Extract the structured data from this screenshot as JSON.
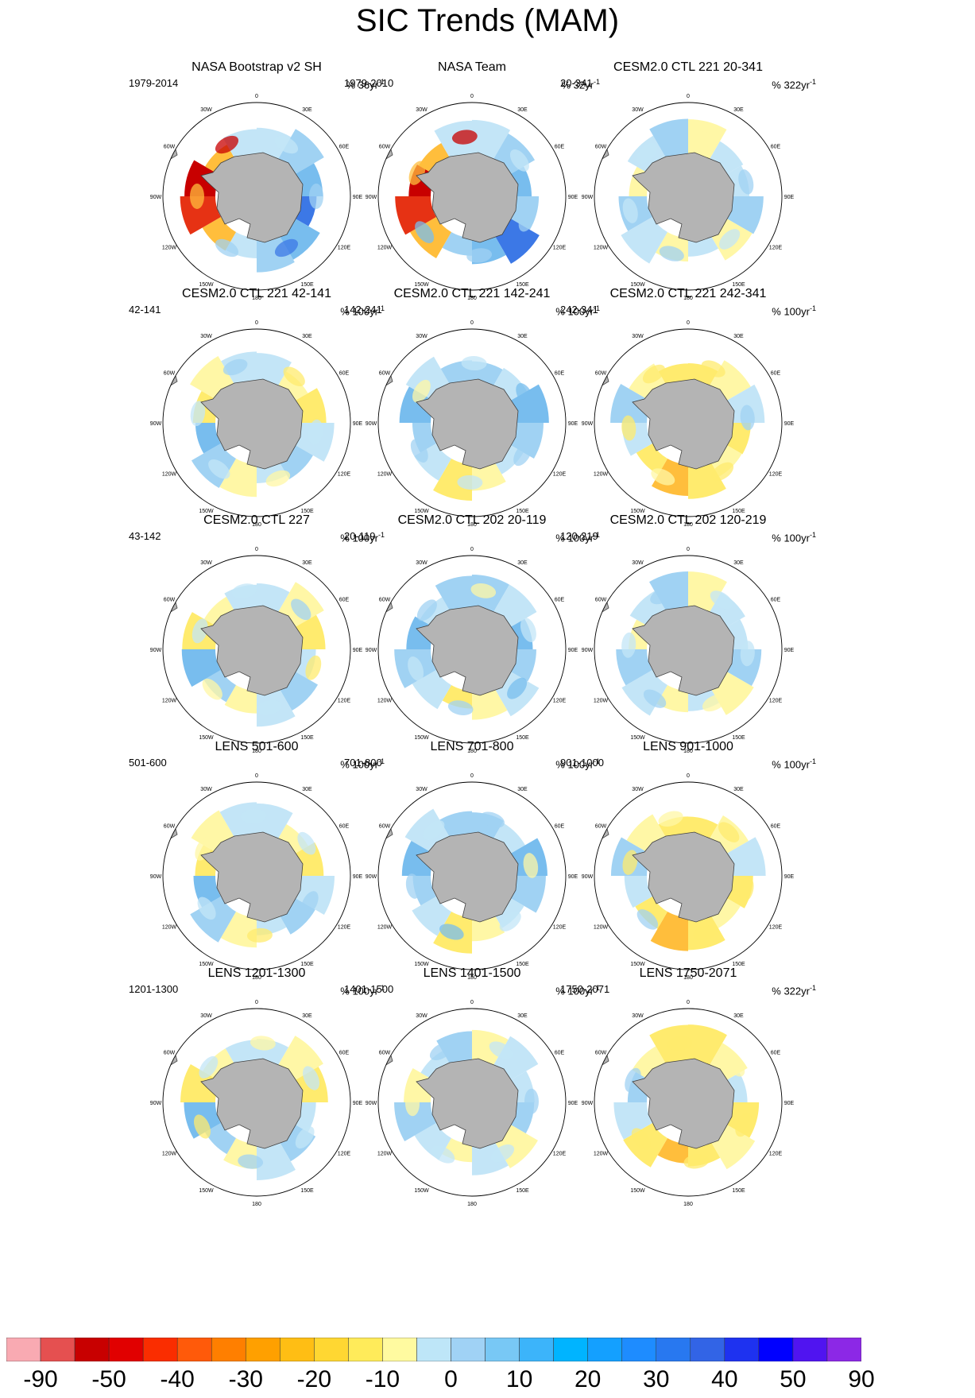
{
  "chart_data": {
    "type": "heatmap",
    "title": "SIC Trends (MAM)",
    "projection": "south-polar stereographic",
    "map_labels": {
      "lon": [
        "0",
        "30E",
        "60E",
        "90E",
        "120E",
        "150E",
        "180",
        "150W",
        "120W",
        "90W",
        "60W",
        "30W"
      ]
    },
    "panels": [
      {
        "title": "NASA Bootstrap v2 SH",
        "years": "1979-2014",
        "rate_prefix": "% 36yr",
        "pattern": "obs"
      },
      {
        "title": "NASA Team",
        "years": "1979-2010",
        "rate_prefix": "% 32yr",
        "pattern": "obs2"
      },
      {
        "title": "CESM2.0 CTL 221 20-341",
        "years": "20-341",
        "rate_prefix": "% 322yr",
        "pattern": "mixA"
      },
      {
        "title": "CESM2.0 CTL 221 42-141",
        "years": "42-141",
        "rate_prefix": "% 100yr",
        "pattern": "mixB"
      },
      {
        "title": "CESM2.0 CTL 221 142-241",
        "years": "142-241",
        "rate_prefix": "% 100yr",
        "pattern": "blue"
      },
      {
        "title": "CESM2.0 CTL 221 242-341",
        "years": "242-341",
        "rate_prefix": "% 100yr",
        "pattern": "yellow"
      },
      {
        "title": "CESM2.0 CTL 227",
        "years": "43-142",
        "rate_prefix": "% 100yr",
        "pattern": "mixB"
      },
      {
        "title": "CESM2.0 CTL 202 20-119",
        "years": "20-119",
        "rate_prefix": "% 100yr",
        "pattern": "blue"
      },
      {
        "title": "CESM2.0 CTL 202 120-219",
        "years": "120-219",
        "rate_prefix": "% 100yr",
        "pattern": "mixA"
      },
      {
        "title": "LENS 501-600",
        "years": "501-600",
        "rate_prefix": "% 100yr",
        "pattern": "mixB"
      },
      {
        "title": "LENS 701-800",
        "years": "701-800",
        "rate_prefix": "% 100yr",
        "pattern": "blue"
      },
      {
        "title": "LENS 901-1000",
        "years": "901-1000",
        "rate_prefix": "% 100yr",
        "pattern": "yellow"
      },
      {
        "title": "LENS 1201-1300",
        "years": "1201-1300",
        "rate_prefix": "% 100yr",
        "pattern": "mixB"
      },
      {
        "title": "LENS 1401-1500",
        "years": "1401-1500",
        "rate_prefix": "% 100yr",
        "pattern": "mixA"
      },
      {
        "title": "LENS 1750-2071",
        "years": "1750-2071",
        "rate_prefix": "% 322yr",
        "pattern": "yellow"
      }
    ],
    "rate_exponent": "-1",
    "colorbar": {
      "colors": [
        "#f9aab2",
        "#e55050",
        "#c80000",
        "#e10000",
        "#fa2d00",
        "#ff5a0a",
        "#ff7f00",
        "#ffa000",
        "#ffbe14",
        "#ffd732",
        "#ffeb5a",
        "#fffaa0",
        "#bee6f8",
        "#a0d2f5",
        "#78c8f5",
        "#3cb4fa",
        "#00b4ff",
        "#14a0ff",
        "#1e8cff",
        "#2878f0",
        "#3264e6",
        "#1e32f0",
        "#0000ff",
        "#5014f0",
        "#8c28e6"
      ],
      "labels": [
        "-90",
        "-50",
        "-40",
        "-30",
        "-20",
        "-10",
        "0",
        "10",
        "20",
        "30",
        "40",
        "50",
        "90"
      ]
    }
  }
}
